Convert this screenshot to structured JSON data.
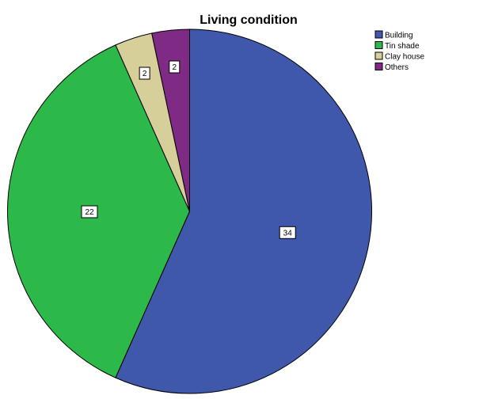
{
  "chart_data": {
    "type": "pie",
    "title": "Living condition",
    "categories": [
      "Building",
      "Tin shade",
      "Clay house",
      "Others"
    ],
    "values": [
      34,
      22,
      2,
      2
    ],
    "colors": [
      "#3f58ab",
      "#2db84a",
      "#d7cf99",
      "#7f2a85"
    ],
    "data_labels": [
      "34",
      "22",
      "2",
      "2"
    ],
    "legend": {
      "position": "top-right",
      "entries": [
        "Building",
        "Tin shade",
        "Clay house",
        "Others"
      ]
    }
  }
}
